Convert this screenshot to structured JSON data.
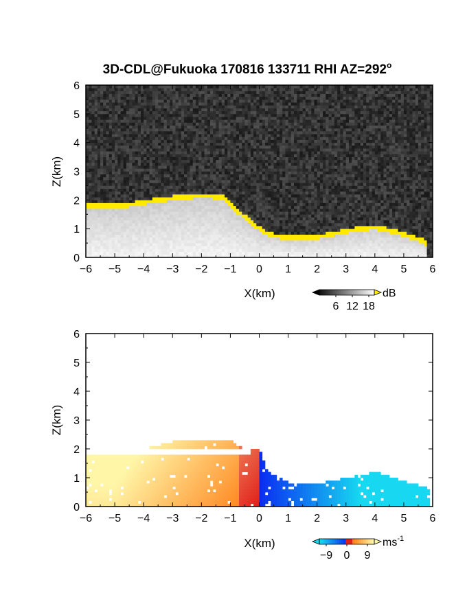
{
  "title": "3D-CDL@Fukuoka 170816 133711 RHI AZ=292",
  "title_superscript": "o",
  "colors": {
    "background_top": "#2a2a2a",
    "yellow": "#ffea00",
    "neg_far": "#17d8f0",
    "neg_near": "#0a2cf0",
    "zero": "#e0201a",
    "pos_near": "#ff7a10",
    "pos_far": "#fff6a8"
  },
  "chart_data": [
    {
      "type": "heatmap",
      "quantity": "backscatter",
      "xlabel": "X(km)",
      "ylabel": "Z(km)",
      "xlim": [
        -6,
        6
      ],
      "ylim": [
        0,
        6
      ],
      "x_ticks": [
        "-6",
        "-5",
        "-4",
        "-3",
        "-2",
        "-1",
        "0",
        "1",
        "2",
        "3",
        "4",
        "5",
        "6"
      ],
      "y_ticks": [
        "0",
        "1",
        "2",
        "3",
        "4",
        "5",
        "6"
      ],
      "colorbar": {
        "unit": "dB",
        "ticks": [
          "6",
          "12",
          "18"
        ],
        "range": [
          0,
          20
        ]
      },
      "layer_top_km": [
        {
          "x": -6.0,
          "z": 1.85
        },
        {
          "x": -5.0,
          "z": 1.8
        },
        {
          "x": -4.0,
          "z": 1.95
        },
        {
          "x": -3.0,
          "z": 2.1
        },
        {
          "x": -2.0,
          "z": 2.2
        },
        {
          "x": -1.3,
          "z": 2.15
        },
        {
          "x": -0.8,
          "z": 1.7
        },
        {
          "x": -0.2,
          "z": 1.2
        },
        {
          "x": 0.3,
          "z": 0.85
        },
        {
          "x": 1.0,
          "z": 0.7
        },
        {
          "x": 2.0,
          "z": 0.75
        },
        {
          "x": 3.0,
          "z": 0.95
        },
        {
          "x": 4.0,
          "z": 1.1
        },
        {
          "x": 5.0,
          "z": 0.85
        },
        {
          "x": 5.8,
          "z": 0.55
        }
      ]
    },
    {
      "type": "heatmap",
      "quantity": "radial_velocity",
      "xlabel": "X(km)",
      "ylabel": "Z(km)",
      "xlim": [
        -6,
        6
      ],
      "ylim": [
        0,
        6
      ],
      "x_ticks": [
        "-6",
        "-5",
        "-4",
        "-3",
        "-2",
        "-1",
        "0",
        "1",
        "2",
        "3",
        "4",
        "5",
        "6"
      ],
      "y_ticks": [
        "0",
        "1",
        "2",
        "3",
        "4",
        "5",
        "6"
      ],
      "colorbar": {
        "unit": "ms",
        "unit_exponent": "-1",
        "ticks": [
          "−9",
          "0",
          "9"
        ],
        "range": [
          -12,
          12
        ]
      },
      "layer_top_km": [
        {
          "x": -6.0,
          "z": 1.9
        },
        {
          "x": -5.0,
          "z": 1.85
        },
        {
          "x": -4.0,
          "z": 2.0
        },
        {
          "x": -3.0,
          "z": 2.25
        },
        {
          "x": -2.0,
          "z": 2.35
        },
        {
          "x": -1.0,
          "z": 2.3
        },
        {
          "x": -0.6,
          "z": 2.05
        },
        {
          "x": 0.0,
          "z": 2.05
        },
        {
          "x": 0.3,
          "z": 1.2
        },
        {
          "x": 1.0,
          "z": 0.85
        },
        {
          "x": 2.0,
          "z": 0.8
        },
        {
          "x": 3.0,
          "z": 1.0
        },
        {
          "x": 4.0,
          "z": 1.2
        },
        {
          "x": 5.0,
          "z": 0.9
        },
        {
          "x": 5.9,
          "z": 0.6
        }
      ],
      "velocity_sign": "positive for X<0, negative for X>0"
    }
  ]
}
